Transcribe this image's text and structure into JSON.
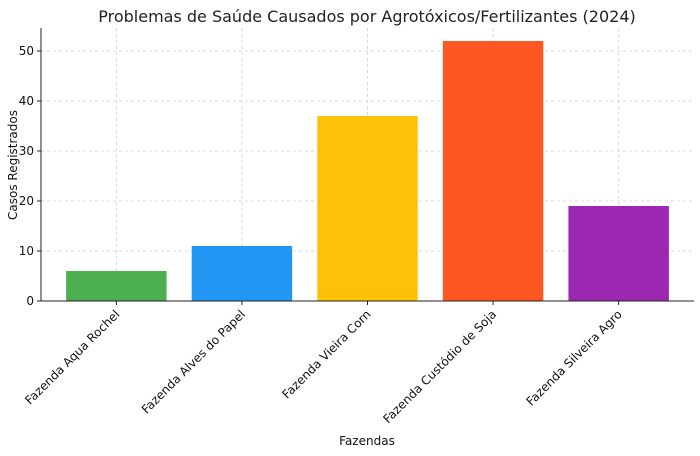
{
  "chart_data": {
    "type": "bar",
    "title": "Problemas de Saúde Causados por Agrotóxicos/Fertilizantes (2024)",
    "xlabel": "Fazendas",
    "ylabel": "Casos Registrados",
    "categories": [
      "Fazenda Aqua Rochel",
      "Fazenda Alves do Papel",
      "Fazenda Vieira Corn",
      "Fazenda Custódio de Soja",
      "Fazenda Silveira Agro"
    ],
    "values": [
      6,
      11,
      37,
      52,
      19
    ],
    "colors": [
      "#4caf50",
      "#2196f3",
      "#ffc107",
      "#ff5722",
      "#9c27b0"
    ],
    "ylim": [
      0,
      54.6
    ],
    "yticks": [
      0,
      10,
      20,
      30,
      40,
      50
    ],
    "grid": true,
    "legend": "none"
  }
}
